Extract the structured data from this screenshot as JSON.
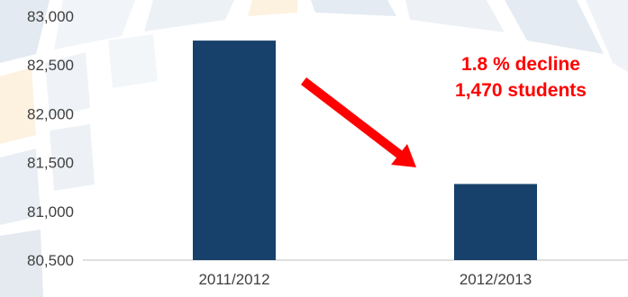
{
  "chart_data": {
    "type": "bar",
    "categories": [
      "2011/2012",
      "2012/2013"
    ],
    "values": [
      82750,
      81280
    ],
    "ylim": [
      80500,
      83000
    ],
    "yticks": [
      80500,
      81000,
      81500,
      82000,
      82500,
      83000
    ],
    "ytick_labels": [
      "80,500",
      "81,000",
      "81,500",
      "82,000",
      "82,500",
      "83,000"
    ],
    "grid": false,
    "bar_color": "#17406a",
    "annotations": [
      {
        "text": "1.8 % decline",
        "color": "#ff0000"
      },
      {
        "text": "1,470 students",
        "color": "#ff0000"
      }
    ],
    "arrow": {
      "color": "#ff0000",
      "from_category": "2011/2012",
      "to_category": "2012/2013"
    }
  }
}
